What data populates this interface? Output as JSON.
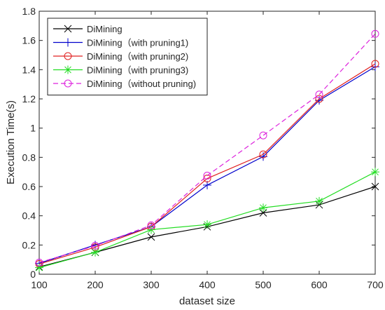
{
  "chart_data": {
    "type": "line",
    "title": "",
    "xlabel": "dataset size",
    "ylabel": "Execution Time(s)",
    "xlim": [
      100,
      700
    ],
    "ylim": [
      0,
      1.8
    ],
    "x_ticks": [
      100,
      200,
      300,
      400,
      500,
      600,
      700
    ],
    "y_ticks": [
      0,
      0.2,
      0.4,
      0.6,
      0.8,
      1,
      1.2,
      1.4,
      1.6,
      1.8
    ],
    "grid": false,
    "legend_position": "top-left",
    "x": [
      100,
      200,
      300,
      400,
      500,
      600,
      700
    ],
    "series": [
      {
        "name": "DiMining",
        "color": "#000000",
        "marker": "x",
        "dash": "solid",
        "values": [
          0.05,
          0.15,
          0.255,
          0.325,
          0.42,
          0.475,
          0.6
        ]
      },
      {
        "name": "DiMining（with pruning1)",
        "color": "#0000cc",
        "marker": "plus",
        "dash": "solid",
        "values": [
          0.075,
          0.2,
          0.325,
          0.61,
          0.805,
          1.19,
          1.42
        ]
      },
      {
        "name": "DiMining（with pruning2)",
        "color": "#e02020",
        "marker": "circle",
        "dash": "solid",
        "values": [
          0.07,
          0.185,
          0.325,
          0.655,
          0.82,
          1.2,
          1.44
        ]
      },
      {
        "name": "DiMining（with pruning3)",
        "color": "#22dd22",
        "marker": "star",
        "dash": "solid",
        "values": [
          0.045,
          0.15,
          0.305,
          0.34,
          0.455,
          0.5,
          0.7
        ]
      },
      {
        "name": "DiMining（without pruning)",
        "color": "#dd22dd",
        "marker": "circle",
        "dash": "dashed",
        "values": [
          0.08,
          0.195,
          0.335,
          0.675,
          0.95,
          1.23,
          1.645
        ]
      }
    ]
  }
}
